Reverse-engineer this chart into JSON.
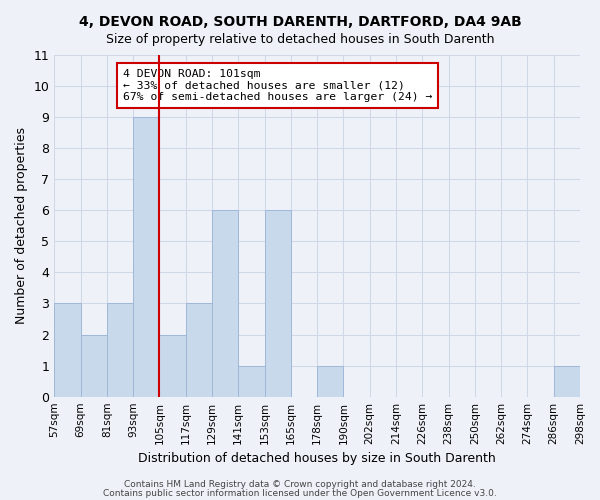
{
  "title": "4, DEVON ROAD, SOUTH DARENTH, DARTFORD, DA4 9AB",
  "subtitle": "Size of property relative to detached houses in South Darenth",
  "xlabel": "Distribution of detached houses by size in South Darenth",
  "ylabel": "Number of detached properties",
  "bin_labels": [
    "57sqm",
    "69sqm",
    "81sqm",
    "93sqm",
    "105sqm",
    "117sqm",
    "129sqm",
    "141sqm",
    "153sqm",
    "165sqm",
    "178sqm",
    "190sqm",
    "202sqm",
    "214sqm",
    "226sqm",
    "238sqm",
    "250sqm",
    "262sqm",
    "274sqm",
    "286sqm",
    "298sqm"
  ],
  "bar_heights": [
    3,
    2,
    3,
    9,
    2,
    3,
    6,
    1,
    6,
    0,
    1,
    0,
    0,
    0,
    0,
    0,
    0,
    0,
    0,
    1
  ],
  "bar_color": "#c9d9ec",
  "bar_edge_color": "#a0b8d8",
  "grid_color": "#d0d8e8",
  "background_color": "#eef2f8",
  "vline_color": "#cc0000",
  "annotation_title": "4 DEVON ROAD: 101sqm",
  "annotation_line1": "← 33% of detached houses are smaller (12)",
  "annotation_line2": "67% of semi-detached houses are larger (24) →",
  "annotation_box_color": "#ffffff",
  "annotation_box_edge": "#cc0000",
  "footer_line1": "Contains HM Land Registry data © Crown copyright and database right 2024.",
  "footer_line2": "Contains public sector information licensed under the Open Government Licence v3.0.",
  "ylim": [
    0,
    11
  ],
  "yticks": [
    0,
    1,
    2,
    3,
    4,
    5,
    6,
    7,
    8,
    9,
    10,
    11
  ]
}
